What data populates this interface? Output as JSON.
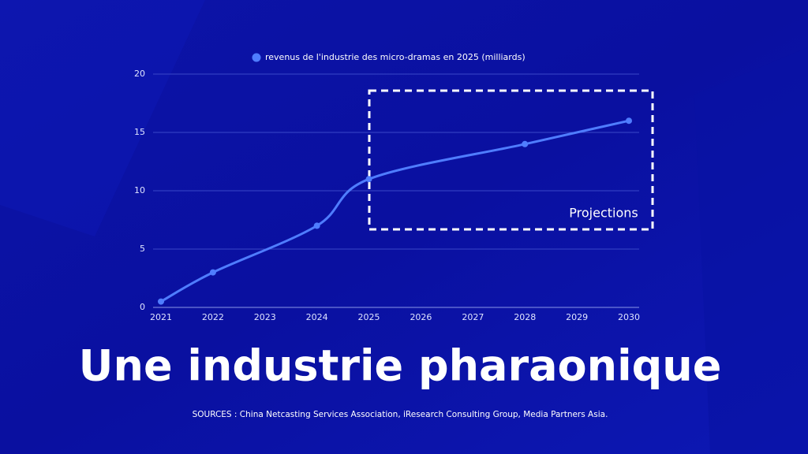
{
  "chart_data": {
    "type": "line",
    "title": "Une industrie pharaonique",
    "sources": "SOURCES : China Netcasting Services Association, iResearch Consulting Group, Media Partners Asia.",
    "annotation": "Projections",
    "x": [
      2021,
      2022,
      2024,
      2025,
      2028,
      2030
    ],
    "series": [
      {
        "name": "revenus de l'industrie des micro-dramas en 2025 (milliards)",
        "color": "#4f7dff",
        "values": [
          0.5,
          3,
          7,
          11,
          14,
          16
        ]
      }
    ],
    "xlim": [
      2021,
      2030
    ],
    "xticks": [
      2021,
      2022,
      2023,
      2024,
      2025,
      2026,
      2027,
      2028,
      2029,
      2030
    ],
    "ylim": [
      0,
      20
    ],
    "yticks": [
      0,
      5,
      10,
      15,
      20
    ],
    "grid": true
  }
}
